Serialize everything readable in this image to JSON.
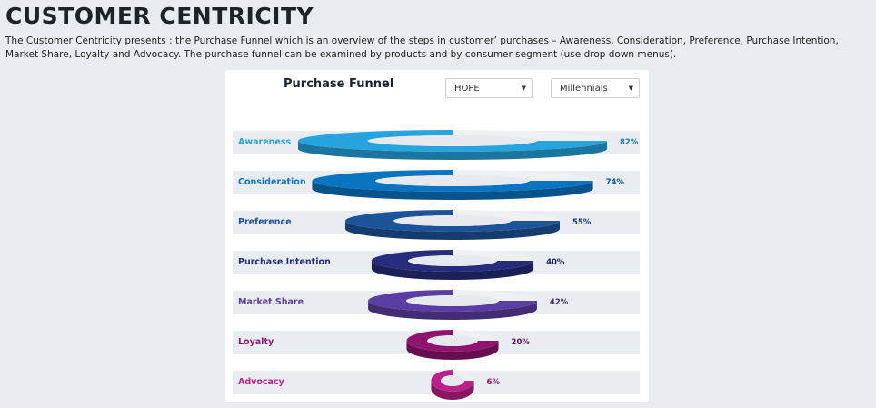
{
  "page": {
    "title": "CUSTOMER CENTRICITY",
    "intro": "The Customer Centricity presents : the Purchase Funnel which is an overview of the steps in customer’ purchases – Awareness, Consideration, Preference, Purchase Intention, Market Share, Loyalty and Advocacy. The purchase funnel can be examined by products and by consumer segment (use drop down menus)."
  },
  "card": {
    "title": "Purchase Funnel",
    "product_select": {
      "value": "HOPE"
    },
    "segment_select": {
      "value": "Millennials"
    }
  },
  "icons": {
    "dropdown": "caret-down-icon"
  },
  "colors": {
    "page_bg": "#e8ecf0",
    "band_bg": "#e9edf1"
  },
  "chart_data": {
    "type": "funnel",
    "title": "Purchase Funnel",
    "categories": [
      "Awareness",
      "Consideration",
      "Preference",
      "Purchase Intention",
      "Market Share",
      "Loyalty",
      "Advocacy"
    ],
    "values": [
      82,
      74,
      55,
      40,
      42,
      20,
      6
    ],
    "value_labels": [
      "82%",
      "74%",
      "55%",
      "40%",
      "42%",
      "20%",
      "6%"
    ],
    "colors": [
      "#27a3dd",
      "#0a74c2",
      "#1d5499",
      "#272c7c",
      "#5b3ea3",
      "#8f1470",
      "#bb2188"
    ]
  }
}
